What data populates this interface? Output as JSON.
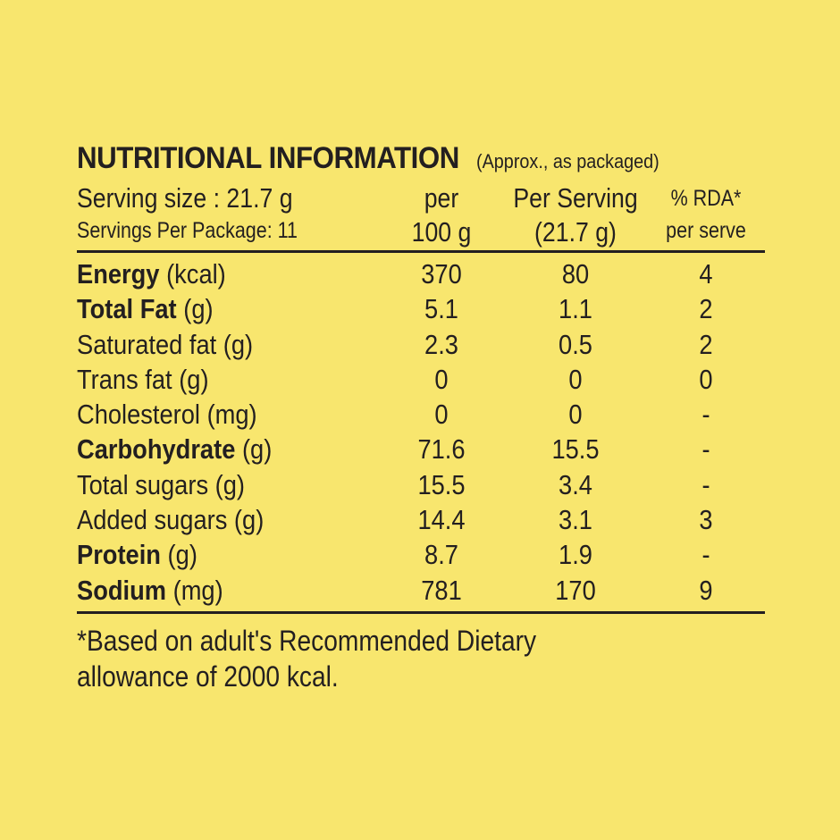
{
  "label": {
    "title": "NUTRITIONAL INFORMATION",
    "title_note": "(Approx., as packaged)",
    "header": {
      "serving_size": "Serving  size  :  21.7  g",
      "servings_per_package": "Servings  Per Package:  11",
      "col1_line1": "per",
      "col1_line2": "100 g",
      "col2_line1": "Per Serving",
      "col2_line2": "(21.7 g)",
      "col3_line1": "% RDA*",
      "col3_line2": "per serve"
    },
    "rows": [
      {
        "name": "Energy",
        "unit": " (kcal)",
        "bold": true,
        "per100g": "370",
        "per_serving": "80",
        "rda": "4"
      },
      {
        "name": "Total Fat",
        "unit": " (g)",
        "bold": true,
        "per100g": "5.1",
        "per_serving": "1.1",
        "rda": "2"
      },
      {
        "name": "Saturated fat",
        "unit": " (g)",
        "bold": false,
        "per100g": "2.3",
        "per_serving": "0.5",
        "rda": "2"
      },
      {
        "name": "Trans fat",
        "unit": " (g)",
        "bold": false,
        "per100g": "0",
        "per_serving": "0",
        "rda": "0"
      },
      {
        "name": "Cholesterol",
        "unit": " (mg)",
        "bold": false,
        "per100g": "0",
        "per_serving": "0",
        "rda": "-"
      },
      {
        "name": "Carbohydrate",
        "unit": " (g)",
        "bold": true,
        "per100g": "71.6",
        "per_serving": "15.5",
        "rda": "-"
      },
      {
        "name": "Total sugars",
        "unit": " (g)",
        "bold": false,
        "per100g": "15.5",
        "per_serving": "3.4",
        "rda": "-"
      },
      {
        "name": "Added sugars",
        "unit": " (g)",
        "bold": false,
        "per100g": "14.4",
        "per_serving": "3.1",
        "rda": "3"
      },
      {
        "name": "Protein",
        "unit": " (g)",
        "bold": true,
        "per100g": "8.7",
        "per_serving": "1.9",
        "rda": "-"
      },
      {
        "name": "Sodium",
        "unit": " (mg)",
        "bold": true,
        "per100g": "781",
        "per_serving": "170",
        "rda": "9"
      }
    ],
    "footnote_line1": "*Based on adult's Recommended Dietary",
    "footnote_line2": "allowance of 2000 kcal."
  },
  "colors": {
    "background": "#F8E66E",
    "text": "#231F20"
  }
}
